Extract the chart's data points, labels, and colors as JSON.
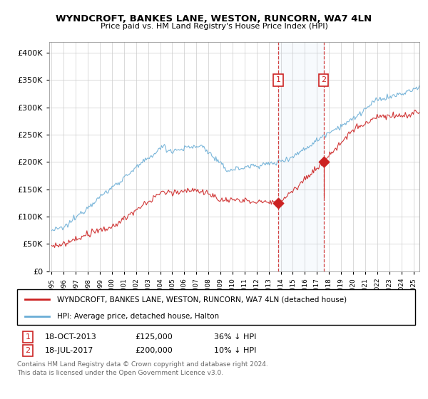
{
  "title": "WYNDCROFT, BANKES LANE, WESTON, RUNCORN, WA7 4LN",
  "subtitle": "Price paid vs. HM Land Registry's House Price Index (HPI)",
  "hpi_color": "#6baed6",
  "price_color": "#cc2222",
  "transaction1": {
    "date": "18-OCT-2013",
    "price": 125000,
    "label": "1",
    "year": 2013.8
  },
  "transaction2": {
    "date": "18-JUL-2017",
    "price": 200000,
    "label": "2",
    "year": 2017.55
  },
  "legend1": "WYNDCROFT, BANKES LANE, WESTON, RUNCORN, WA7 4LN (detached house)",
  "legend2": "HPI: Average price, detached house, Halton",
  "footnote1": "Contains HM Land Registry data © Crown copyright and database right 2024.",
  "footnote2": "This data is licensed under the Open Government Licence v3.0.",
  "note1_date": "18-OCT-2013",
  "note1_price": "£125,000",
  "note1_hpi": "36% ↓ HPI",
  "note2_date": "18-JUL-2017",
  "note2_price": "£200,000",
  "note2_hpi": "10% ↓ HPI",
  "ylim": [
    0,
    420000
  ],
  "xlim_start": 1994.8,
  "xlim_end": 2025.5
}
